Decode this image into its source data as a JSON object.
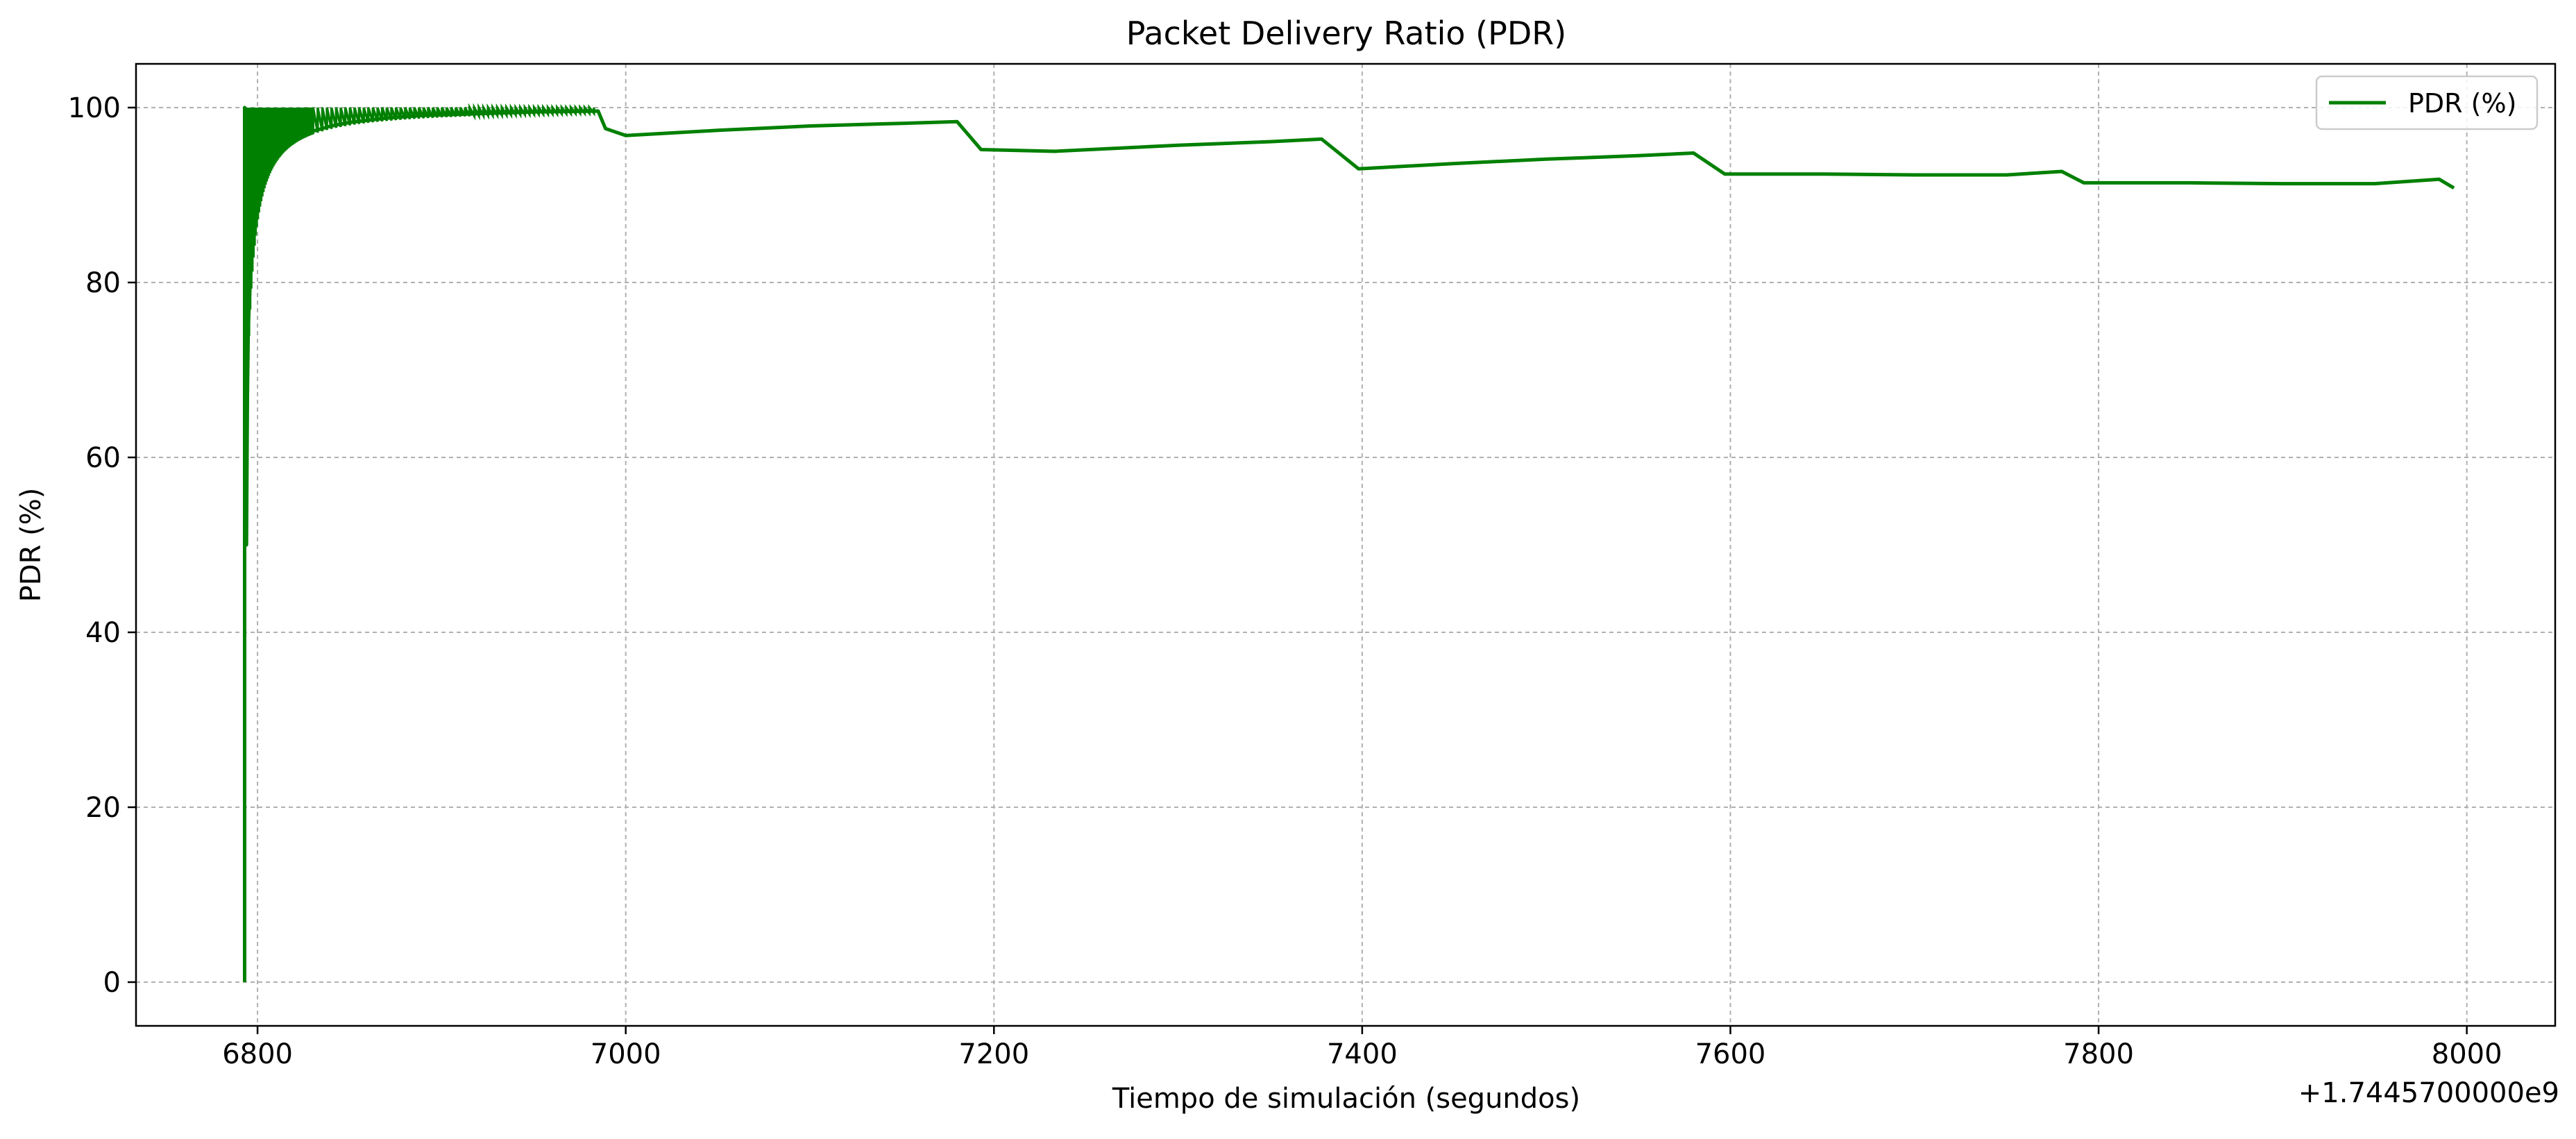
{
  "chart_data": {
    "type": "line",
    "title": "Packet Delivery Ratio (PDR)",
    "xlabel": "Tiempo de simulación (segundos)",
    "ylabel": "PDR (%)",
    "x_offset_label": "+1.7445700000e9",
    "xlim": [
      6734,
      8048
    ],
    "ylim": [
      -5,
      105
    ],
    "x_ticks": [
      6800,
      7000,
      7200,
      7400,
      7600,
      7800,
      8000
    ],
    "x_tick_labels": [
      "6800",
      "7000",
      "7200",
      "7400",
      "7600",
      "7800",
      "8000"
    ],
    "y_ticks": [
      0,
      20,
      40,
      60,
      80,
      100
    ],
    "y_tick_labels": [
      "0",
      "20",
      "40",
      "60",
      "80",
      "100"
    ],
    "grid": true,
    "legend": "upper-right",
    "series": [
      {
        "name": "PDR (%)",
        "color": "#008000",
        "x": [
          6793,
          6793,
          6794,
          6794.5,
          6795,
          6796,
          6797,
          6798,
          6800,
          6803,
          6806,
          6810,
          6815,
          6820,
          6830,
          6840,
          6850,
          6870,
          6890,
          6920,
          6950,
          6985,
          6989,
          7000,
          7050,
          7100,
          7150,
          7180,
          7193,
          7233,
          7300,
          7350,
          7378,
          7398,
          7450,
          7500,
          7550,
          7580,
          7597,
          7650,
          7700,
          7750,
          7780,
          7792,
          7850,
          7900,
          7950,
          7985,
          7993
        ],
        "y": [
          0,
          100,
          50,
          66.7,
          75,
          80,
          83.3,
          85.7,
          88.9,
          91,
          93,
          94.5,
          95.5,
          96.3,
          97.3,
          97.9,
          98.3,
          98.8,
          99.1,
          99.3,
          99.5,
          99.6,
          97.6,
          96.8,
          97.4,
          97.9,
          98.2,
          98.4,
          95.2,
          95,
          95.7,
          96.1,
          96.4,
          93,
          93.6,
          94.1,
          94.5,
          94.8,
          92.4,
          92.4,
          92.3,
          92.3,
          92.7,
          91.4,
          91.4,
          91.3,
          91.3,
          91.8,
          90.8
        ]
      }
    ]
  }
}
